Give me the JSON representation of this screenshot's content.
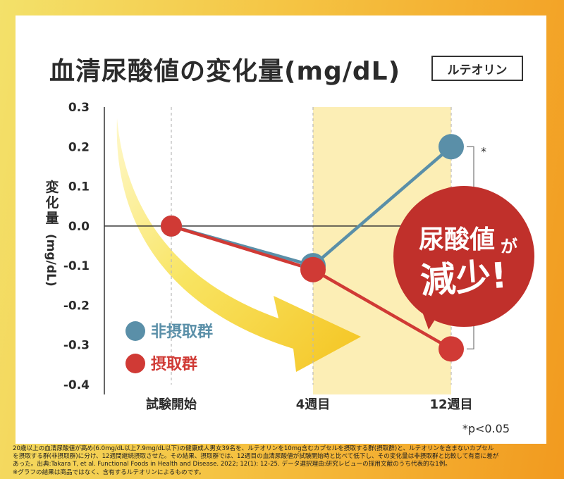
{
  "title": "血清尿酸値の変化量(mg/dL)",
  "title_tag": "ルテオリン",
  "chart_data": {
    "type": "line",
    "ylabel": "変化量(mg/dL)",
    "ylim": [
      -0.4,
      0.3
    ],
    "yticks": [
      "0.3",
      "0.2",
      "0.1",
      "0.0",
      "-0.1",
      "-0.2",
      "-0.3",
      "-0.4"
    ],
    "categories": [
      "試験開始",
      "4週目",
      "12週目"
    ],
    "highlight_category_range": [
      "4週目",
      "12週目"
    ],
    "series": [
      {
        "name": "非摂取群",
        "color": "#5a8fa8",
        "values": [
          0.0,
          -0.1,
          0.2
        ]
      },
      {
        "name": "摂取群",
        "color": "#d03a35",
        "values": [
          0.0,
          -0.11,
          -0.31
        ]
      }
    ],
    "legend_position": "bottom-left",
    "significance_marker": "*",
    "significance_note": "*p<0.05",
    "callout": {
      "line1": "尿酸値",
      "line1_particle": "が",
      "line2": "減少!",
      "color": "#c0302b"
    }
  },
  "footnote": [
    "20歳以上の血清尿酸値が高め(6.0mg/dL以上7.9mg/dL以下)の健康成人男女39名を、ルテオリンを10mg含むカプセルを摂取する群(摂取群)と、ルテオリンを含まないカプセル",
    "を摂取する群(非摂取群)に分け、12週間継続摂取させた。その結果、摂取群では、12週目の血清尿酸値が試験開始時と比べて低下し、その変化量は非摂取群と比較して有意に差が",
    "あった。出典:Takara T, et al. Functional Foods in Health and Disease. 2022; 12(1): 12-25. データ選択理由:研究レビューの採用文献のうち代表的な1例。",
    "※グラフの結果は商品ではなく、含有するルテオリンによるものです。"
  ]
}
